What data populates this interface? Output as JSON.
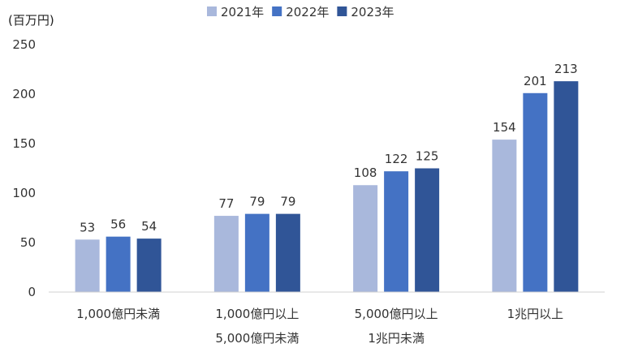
{
  "chart_data": {
    "type": "bar",
    "unit_label": "(百万円)",
    "categories": [
      [
        "1,000億円未満"
      ],
      [
        "1,000億円以上",
        "5,000億円未満"
      ],
      [
        "5,000億円以上",
        "1兆円未満"
      ],
      [
        "1兆円以上"
      ]
    ],
    "series": [
      {
        "name": "2021年",
        "color": "#a9b8dc",
        "values": [
          53,
          77,
          108,
          154
        ]
      },
      {
        "name": "2022年",
        "color": "#4472c4",
        "values": [
          56,
          79,
          122,
          201
        ]
      },
      {
        "name": "2023年",
        "color": "#305597",
        "values": [
          54,
          79,
          125,
          213
        ]
      }
    ],
    "yticks": [
      0,
      50,
      100,
      150,
      200,
      250
    ],
    "ylim": [
      0,
      250
    ],
    "legend_position": "top",
    "grid": false
  }
}
